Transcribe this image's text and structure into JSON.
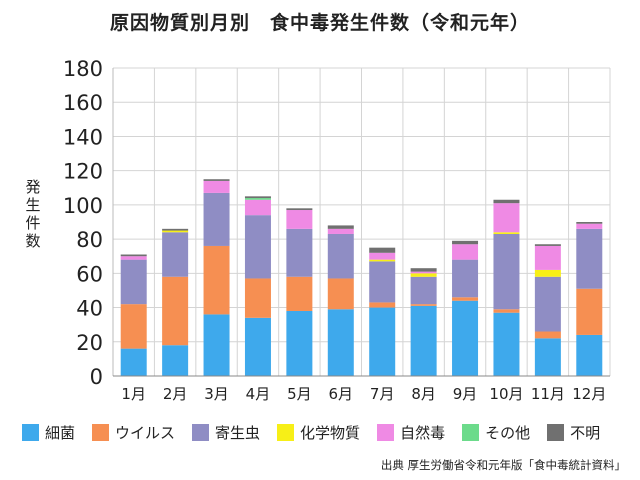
{
  "chart_data": {
    "type": "bar",
    "stacked": true,
    "title": "原因物質別月別　食中毒発生件数（令和元年）",
    "xlabel": "",
    "ylabel": "発生件数",
    "ylim": [
      0,
      180
    ],
    "yticks": [
      0,
      20,
      40,
      60,
      80,
      100,
      120,
      140,
      160,
      180
    ],
    "grid": true,
    "legend_position": "bottom",
    "categories": [
      "1月",
      "2月",
      "3月",
      "4月",
      "5月",
      "6月",
      "7月",
      "8月",
      "9月",
      "10月",
      "11月",
      "12月"
    ],
    "series": [
      {
        "name": "細菌",
        "color": "#3ea9ec",
        "values": [
          16,
          18,
          36,
          34,
          38,
          39,
          40,
          41,
          44,
          37,
          22,
          24
        ]
      },
      {
        "name": "ウイルス",
        "color": "#f68f52",
        "values": [
          26,
          40,
          40,
          23,
          20,
          18,
          3,
          1,
          2,
          2,
          4,
          27
        ]
      },
      {
        "name": "寄生虫",
        "color": "#8f8dc4",
        "values": [
          26,
          26,
          31,
          37,
          28,
          26,
          24,
          16,
          22,
          44,
          32,
          35
        ]
      },
      {
        "name": "化学物質",
        "color": "#f7ef17",
        "values": [
          0,
          1,
          0,
          0,
          0,
          0,
          1,
          2,
          0,
          1,
          4,
          0
        ]
      },
      {
        "name": "自然毒",
        "color": "#ef8ae4",
        "values": [
          2,
          0,
          7,
          9,
          11,
          3,
          4,
          1,
          9,
          17,
          14,
          3
        ]
      },
      {
        "name": "その他",
        "color": "#6cdb8b",
        "values": [
          0,
          0,
          0,
          1,
          0,
          0,
          0,
          0,
          0,
          0,
          0,
          0
        ]
      },
      {
        "name": "不明",
        "color": "#707070",
        "values": [
          1,
          1,
          1,
          1,
          1,
          2,
          3,
          2,
          2,
          2,
          1,
          1
        ]
      }
    ]
  },
  "source": "出典 厚生労働省令和元年版「食中毒統計資料」"
}
